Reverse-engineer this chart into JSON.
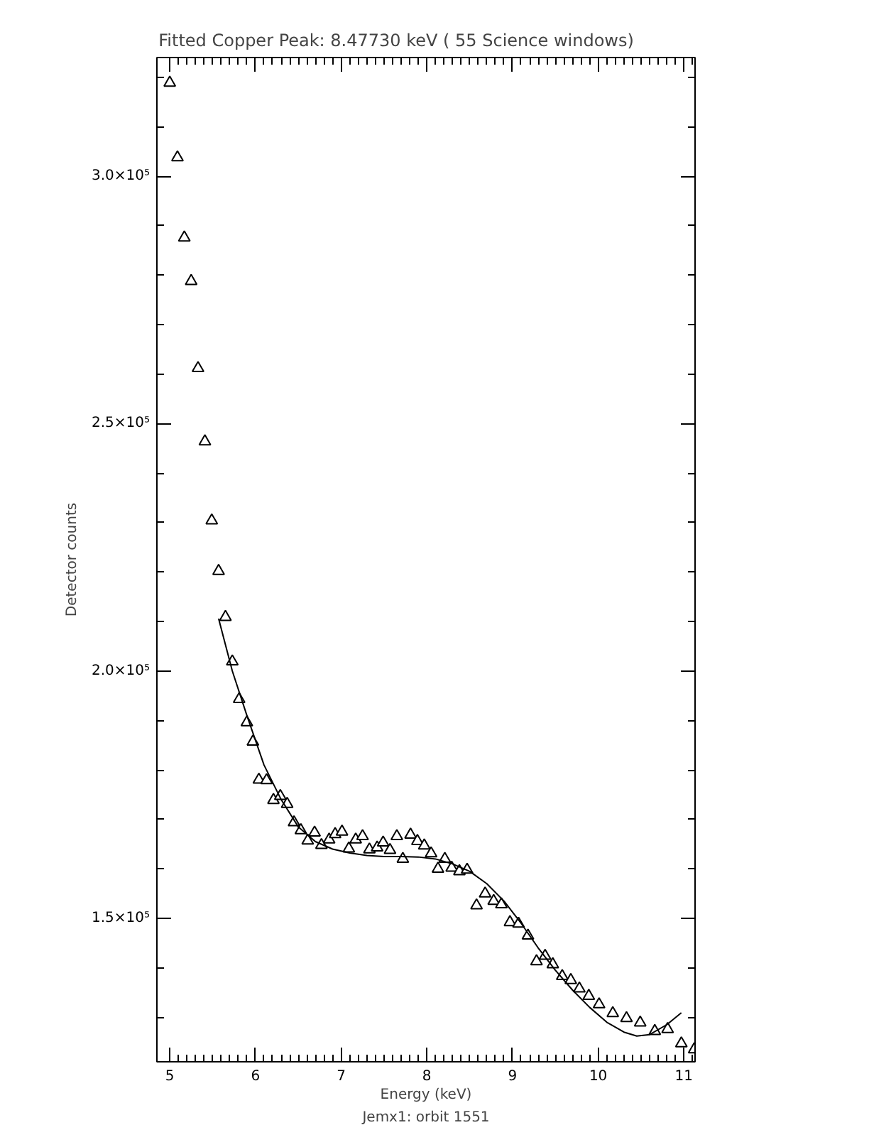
{
  "chart_data": {
    "type": "scatter",
    "title": "Fitted Copper Peak:       8.47730 keV (      55 Science windows)",
    "xlabel": "Energy (keV)",
    "ylabel": "Detector counts",
    "annotations": [
      "Jemx1: orbit 1551"
    ],
    "xlim": [
      4.85,
      11.13
    ],
    "ylim": [
      121000,
      324000
    ],
    "xticks": [
      5,
      6,
      7,
      8,
      9,
      10,
      11,
      {
        "value": 5.1,
        "label": null
      },
      {
        "value": 5.2,
        "label": null
      },
      {
        "value": 5.3,
        "label": null
      },
      {
        "value": 5.4,
        "label": null
      },
      {
        "value": 5.5,
        "label": null
      },
      {
        "value": 5.6,
        "label": null
      },
      {
        "value": 5.7,
        "label": null
      },
      {
        "value": 5.8,
        "label": null
      },
      {
        "value": 5.9,
        "label": null
      },
      {
        "value": 6.1,
        "label": null
      },
      {
        "value": 6.2,
        "label": null
      },
      {
        "value": 6.3,
        "label": null
      },
      {
        "value": 6.4,
        "label": null
      },
      {
        "value": 6.5,
        "label": null
      },
      {
        "value": 6.6,
        "label": null
      },
      {
        "value": 6.7,
        "label": null
      },
      {
        "value": 6.8,
        "label": null
      },
      {
        "value": 6.9,
        "label": null
      },
      {
        "value": 7.1,
        "label": null
      },
      {
        "value": 7.2,
        "label": null
      },
      {
        "value": 7.3,
        "label": null
      },
      {
        "value": 7.4,
        "label": null
      },
      {
        "value": 7.5,
        "label": null
      },
      {
        "value": 7.6,
        "label": null
      },
      {
        "value": 7.7,
        "label": null
      },
      {
        "value": 7.8,
        "label": null
      },
      {
        "value": 7.9,
        "label": null
      },
      {
        "value": 8.1,
        "label": null
      },
      {
        "value": 8.2,
        "label": null
      },
      {
        "value": 8.3,
        "label": null
      },
      {
        "value": 8.4,
        "label": null
      },
      {
        "value": 8.5,
        "label": null
      },
      {
        "value": 8.6,
        "label": null
      },
      {
        "value": 8.7,
        "label": null
      },
      {
        "value": 8.8,
        "label": null
      },
      {
        "value": 8.9,
        "label": null
      },
      {
        "value": 9.1,
        "label": null
      },
      {
        "value": 9.2,
        "label": null
      },
      {
        "value": 9.3,
        "label": null
      },
      {
        "value": 9.4,
        "label": null
      },
      {
        "value": 9.5,
        "label": null
      },
      {
        "value": 9.6,
        "label": null
      },
      {
        "value": 9.7,
        "label": null
      },
      {
        "value": 9.8,
        "label": null
      },
      {
        "value": 9.9,
        "label": null
      },
      {
        "value": 10.1,
        "label": null
      },
      {
        "value": 10.2,
        "label": null
      },
      {
        "value": 10.3,
        "label": null
      },
      {
        "value": 10.4,
        "label": null
      },
      {
        "value": 10.5,
        "label": null
      },
      {
        "value": 10.6,
        "label": null
      },
      {
        "value": 10.7,
        "label": null
      },
      {
        "value": 10.8,
        "label": null
      },
      {
        "value": 10.9,
        "label": null
      },
      {
        "value": 11.1,
        "label": null
      }
    ],
    "yticks": [
      {
        "value": 150000,
        "label": "1.5×10⁵"
      },
      {
        "value": 200000,
        "label": "2.0×10⁵"
      },
      {
        "value": 250000,
        "label": "2.5×10⁵"
      },
      {
        "value": 300000,
        "label": "3.0×10⁵"
      },
      {
        "value": 130000,
        "label": null
      },
      {
        "value": 140000,
        "label": null
      },
      {
        "value": 160000,
        "label": null
      },
      {
        "value": 170000,
        "label": null
      },
      {
        "value": 180000,
        "label": null
      },
      {
        "value": 190000,
        "label": null
      },
      {
        "value": 210000,
        "label": null
      },
      {
        "value": 220000,
        "label": null
      },
      {
        "value": 230000,
        "label": null
      },
      {
        "value": 240000,
        "label": null
      },
      {
        "value": 260000,
        "label": null
      },
      {
        "value": 270000,
        "label": null
      },
      {
        "value": 280000,
        "label": null
      },
      {
        "value": 290000,
        "label": null
      },
      {
        "value": 310000,
        "label": null
      },
      {
        "value": 320000,
        "label": null
      }
    ],
    "grid": false,
    "series": [
      {
        "marker": "triangle",
        "color": "#000000",
        "x": [
          5.0,
          5.09,
          5.17,
          5.25,
          5.33,
          5.41,
          5.49,
          5.57,
          5.65,
          5.73,
          5.81,
          5.9,
          5.97,
          6.04,
          6.13,
          6.21,
          6.29,
          6.37,
          6.45,
          6.53,
          6.61,
          6.69,
          6.77,
          6.86,
          6.93,
          7.01,
          7.09,
          7.17,
          7.25,
          7.33,
          7.42,
          7.49,
          7.57,
          7.65,
          7.72,
          7.81,
          7.89,
          7.97,
          8.05,
          8.13,
          8.21,
          8.29,
          8.38,
          8.47,
          8.58,
          8.68,
          8.78,
          8.87,
          8.97,
          9.07,
          9.18,
          9.28,
          9.38,
          9.47,
          9.58,
          9.68,
          9.78,
          9.89,
          10.01,
          10.17,
          10.33,
          10.49,
          10.66,
          10.81,
          10.97,
          11.12
        ],
        "values": [
          318900,
          303800,
          287600,
          278800,
          261200,
          246400,
          230400,
          220200,
          210900,
          201900,
          194300,
          189600,
          185700,
          178000,
          177900,
          173900,
          174700,
          173100,
          169400,
          167800,
          165700,
          167300,
          164800,
          165900,
          167000,
          167500,
          164100,
          165900,
          166600,
          163900,
          164300,
          165300,
          163800,
          166600,
          162000,
          166900,
          165600,
          164700,
          163100,
          160000,
          162000,
          160200,
          159500,
          159800,
          152600,
          155000,
          153500,
          152800,
          149200,
          148900,
          146500,
          141300,
          142400,
          140700,
          138300,
          137500,
          135800,
          134300,
          132600,
          130800,
          129800,
          128900,
          127200,
          127600,
          124700,
          123500
        ]
      },
      {
        "type": "line",
        "marker": "none",
        "line_style": "solid",
        "color": "#000000",
        "x": [
          5.57,
          5.73,
          5.9,
          6.1,
          6.3,
          6.5,
          6.7,
          6.9,
          7.1,
          7.3,
          7.5,
          7.7,
          7.9,
          8.1,
          8.3,
          8.5,
          8.7,
          8.9,
          9.1,
          9.3,
          9.5,
          9.7,
          9.9,
          10.1,
          10.3,
          10.45,
          10.6,
          10.8,
          10.97
        ],
        "values": [
          210600,
          200000,
          191000,
          181000,
          174000,
          168500,
          165500,
          164000,
          163200,
          162700,
          162500,
          162500,
          162400,
          162000,
          161000,
          159500,
          157000,
          153500,
          149000,
          144000,
          139500,
          135500,
          132000,
          129000,
          127000,
          126200,
          126500,
          128500,
          130900
        ]
      }
    ]
  }
}
